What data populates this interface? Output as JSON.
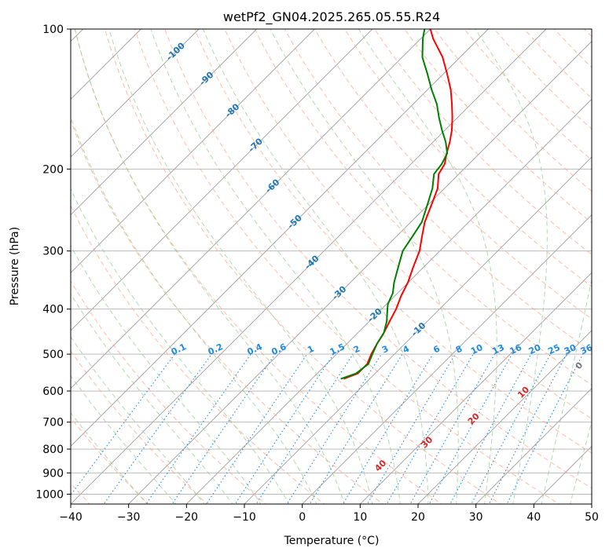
{
  "chart_data": {
    "type": "skew-t",
    "title": "wetPf2_GN04.2025.265.05.55.R24",
    "xlabel": "Temperature (°C)",
    "ylabel": "Pressure (hPa)",
    "xlim": [
      -40,
      50
    ],
    "ylim": [
      1050,
      100
    ],
    "x_ticks": [
      -40,
      -30,
      -20,
      -10,
      0,
      10,
      20,
      30,
      40,
      50
    ],
    "y_ticks": [
      100,
      200,
      300,
      400,
      500,
      600,
      700,
      800,
      900,
      1000
    ],
    "colors": {
      "temperature": "#ff0000",
      "dewpoint": "#008000",
      "isotherm": "#9e9e9e",
      "isobar": "#b0b0b0",
      "dry_adiabat": "#ff9f80",
      "moist_adiabat": "#8fc98f",
      "mixing_ratio": "#1f8ae6",
      "dry_label": "#1f77b4",
      "moist_label": "#d62728",
      "lcl_curve": "#d9b38c"
    },
    "dry_adiabat_labels": [
      "-100",
      "-90",
      "-80",
      "-70",
      "-60",
      "-50",
      "-40",
      "-30",
      "-20",
      "-10"
    ],
    "moist_adiabat_labels": [
      "0",
      "10",
      "20",
      "30",
      "40"
    ],
    "mixing_ratio_labels": [
      "0.1",
      "0.2",
      "0.4",
      "0.6",
      "1",
      "1.5",
      "2",
      "3",
      "4",
      "6",
      "8",
      "10",
      "13",
      "16",
      "20",
      "25",
      "30",
      "36"
    ],
    "series": [
      {
        "name": "Temperature",
        "pressure": [
          565,
          550,
          525,
          500,
          475,
          450,
          425,
          400,
          375,
          350,
          325,
          300,
          280,
          260,
          240,
          220,
          205,
          195,
          185,
          175,
          165,
          155,
          145,
          135,
          125,
          115,
          105,
          100
        ],
        "values": [
          -14.5,
          -13,
          -13,
          -14,
          -14.8,
          -15.5,
          -16.5,
          -17.5,
          -18.9,
          -20.1,
          -21.8,
          -23.5,
          -25.5,
          -27.6,
          -29.3,
          -31.2,
          -33.5,
          -34.2,
          -35.7,
          -37.1,
          -38.8,
          -40.9,
          -43.3,
          -46,
          -49.3,
          -53,
          -57.8,
          -60
        ]
      },
      {
        "name": "Dewpoint",
        "pressure": [
          565,
          550,
          525,
          500,
          475,
          450,
          425,
          400,
          390,
          370,
          350,
          330,
          300,
          280,
          260,
          240,
          220,
          205,
          195,
          185,
          175,
          165,
          155,
          145,
          135,
          125,
          115,
          105,
          100
        ],
        "values": [
          -15,
          -13.3,
          -12.8,
          -13.8,
          -14.8,
          -15.5,
          -17,
          -19,
          -19.8,
          -20.8,
          -22.5,
          -24,
          -26.4,
          -27.2,
          -28.1,
          -30,
          -32.1,
          -34.3,
          -34.7,
          -35.6,
          -37.8,
          -40.5,
          -43.2,
          -45.9,
          -49.3,
          -52.7,
          -56.5,
          -59.6,
          -61
        ]
      }
    ]
  }
}
